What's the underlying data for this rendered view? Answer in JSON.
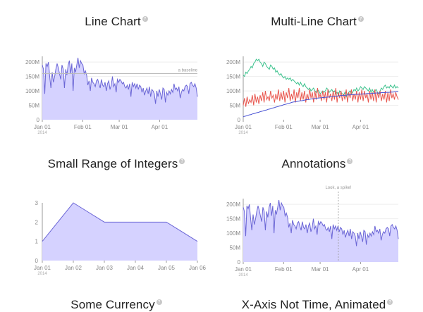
{
  "panels": {
    "line": {
      "title": "Line Chart",
      "help": "?"
    },
    "multi": {
      "title": "Multi-Line Chart",
      "help": "?"
    },
    "small": {
      "title": "Small Range of Integers",
      "help": "?"
    },
    "annotations": {
      "title": "Annotations",
      "help": "?"
    },
    "currency": {
      "title": "Some Currency",
      "help": "?"
    },
    "xaxis": {
      "title": "X-Axis Not Time, Animated",
      "help": "?"
    }
  },
  "colors": {
    "area_fill": "#d5d2ff",
    "area_line": "#6b66d6",
    "green": "#3cc28d",
    "red": "#e8574f",
    "blue": "#4a54d4"
  },
  "chart_data": [
    {
      "id": "line",
      "type": "area",
      "title": "Line Chart",
      "x_range": [
        "2014-01-01",
        "2014-04-30"
      ],
      "ylim": [
        0,
        220000000
      ],
      "y_ticks": [
        "0",
        "50M",
        "100M",
        "150M",
        "200M"
      ],
      "x_ticks": [
        "Jan 01",
        "Feb 01",
        "Mar 01",
        "Apr 01"
      ],
      "x_sub": "2014",
      "baseline": {
        "value": 160000000,
        "label": "a baseline"
      },
      "values": [
        190,
        175,
        90,
        195,
        185,
        200,
        150,
        110,
        165,
        130,
        150,
        175,
        195,
        180,
        160,
        140,
        190,
        175,
        110,
        175,
        155,
        190,
        205,
        160,
        195,
        100,
        180,
        165,
        190,
        215,
        180,
        205,
        195,
        190,
        160,
        170,
        155,
        120,
        135,
        100,
        145,
        130,
        125,
        115,
        135,
        140,
        125,
        110,
        140,
        120,
        115,
        130,
        100,
        125,
        135,
        105,
        120,
        150,
        115,
        125,
        95,
        140,
        130,
        140,
        135,
        125,
        130,
        115,
        110,
        120,
        105,
        125,
        80,
        130,
        115,
        125,
        110,
        125,
        105,
        120,
        115,
        95,
        110,
        85,
        100,
        110,
        90,
        115,
        80,
        105,
        100,
        90,
        55,
        100,
        80,
        105,
        90,
        70,
        110,
        105,
        60,
        95,
        85,
        100,
        90,
        105,
        95,
        125,
        105,
        110,
        100,
        115,
        75,
        95,
        105,
        100,
        115,
        120,
        115,
        90,
        125,
        130,
        120,
        115,
        125,
        110,
        80
      ]
    },
    {
      "id": "multi",
      "type": "line",
      "title": "Multi-Line Chart",
      "x_range": [
        "2014-01-01",
        "2014-04-30"
      ],
      "ylim": [
        0,
        220000000
      ],
      "y_ticks": [
        "0",
        "50M",
        "100M",
        "150M",
        "200M"
      ],
      "x_ticks": [
        "Jan 01",
        "Feb 01",
        "Mar 01",
        "Apr 01"
      ],
      "x_sub": "2014",
      "series": [
        {
          "color": "green",
          "values": [
            155,
            150,
            165,
            160,
            170,
            175,
            185,
            180,
            195,
            200,
            210,
            205,
            210,
            200,
            195,
            185,
            200,
            195,
            185,
            180,
            175,
            190,
            185,
            175,
            180,
            165,
            170,
            160,
            155,
            160,
            150,
            145,
            150,
            140,
            145,
            140,
            145,
            135,
            140,
            135,
            130,
            125,
            130,
            120,
            130,
            120,
            115,
            125,
            115,
            110,
            105,
            110,
            100,
            105,
            110,
            100,
            95,
            105,
            100,
            90,
            95,
            100,
            95,
            100,
            110,
            105,
            95,
            100,
            105,
            95,
            100,
            90,
            95,
            85,
            100,
            95,
            90,
            85,
            95,
            80,
            90,
            95,
            100,
            90,
            95,
            105,
            100,
            110,
            100,
            105,
            115,
            110,
            105,
            115,
            110,
            105,
            100,
            110,
            95,
            105,
            95,
            100,
            105,
            95,
            90,
            100,
            110,
            105,
            115,
            120,
            110,
            115,
            110,
            120,
            115,
            110,
            120,
            110,
            115,
            110
          ]
        },
        {
          "color": "red",
          "values": [
            50,
            75,
            45,
            80,
            55,
            70,
            60,
            85,
            50,
            90,
            60,
            80,
            55,
            85,
            65,
            95,
            60,
            100,
            70,
            80,
            65,
            100,
            75,
            85,
            60,
            90,
            70,
            105,
            65,
            95,
            70,
            100,
            60,
            95,
            75,
            110,
            65,
            90,
            70,
            105,
            60,
            95,
            75,
            110,
            65,
            95,
            70,
            100,
            60,
            90,
            70,
            105,
            75,
            95,
            60,
            100,
            70,
            110,
            75,
            90,
            65,
            100,
            70,
            95,
            60,
            105,
            75,
            90,
            65,
            100,
            70,
            110,
            60,
            95,
            75,
            100,
            65,
            90,
            70,
            105,
            60,
            95,
            75,
            105,
            65,
            90,
            70,
            100,
            60,
            95,
            70,
            105,
            65,
            100,
            75,
            90,
            60,
            100,
            70,
            95,
            65,
            105,
            60,
            95,
            75,
            100,
            65,
            90,
            70,
            100,
            60,
            95,
            65,
            105,
            75,
            90,
            70,
            95,
            80,
            70
          ]
        },
        {
          "color": "blue",
          "values": [
            10,
            12,
            13,
            14,
            16,
            17,
            18,
            20,
            21,
            22,
            24,
            25,
            26,
            28,
            29,
            30,
            32,
            33,
            34,
            36,
            37,
            38,
            40,
            41,
            42,
            44,
            45,
            46,
            48,
            49,
            50,
            52,
            53,
            54,
            56,
            57,
            58,
            60,
            61,
            62,
            62,
            63,
            64,
            65,
            66,
            66,
            67,
            68,
            69,
            70,
            70,
            71,
            72,
            72,
            73,
            74,
            74,
            75,
            75,
            76,
            76,
            77,
            77,
            78,
            78,
            79,
            79,
            80,
            80,
            81,
            81,
            82,
            82,
            83,
            83,
            84,
            84,
            84,
            85,
            85,
            86,
            86,
            86,
            87,
            87,
            87,
            88,
            88,
            88,
            89,
            89,
            89,
            90,
            90,
            90,
            91,
            91,
            91,
            91,
            92,
            92,
            92,
            93,
            93,
            93,
            93,
            94,
            94,
            94,
            94,
            95,
            95,
            95,
            96,
            96,
            96,
            97,
            97,
            98,
            98
          ]
        }
      ]
    },
    {
      "id": "small",
      "type": "area",
      "title": "Small Range of Integers",
      "x": [
        "Jan 01",
        "Jan 02",
        "Jan 03",
        "Jan 04",
        "Jan 05",
        "Jan 06"
      ],
      "values": [
        1,
        3,
        2,
        2,
        2,
        1
      ],
      "ylim": [
        0,
        3
      ],
      "y_ticks": [
        "0",
        "1",
        "2",
        "3"
      ],
      "x_sub": "2014"
    },
    {
      "id": "annotations",
      "type": "area",
      "title": "Annotations",
      "x_range": [
        "2014-01-01",
        "2014-04-30"
      ],
      "ylim": [
        0,
        220000000
      ],
      "y_ticks": [
        "0",
        "50M",
        "100M",
        "150M",
        "200M"
      ],
      "x_ticks": [
        "Jan 01",
        "Feb 01",
        "Mar 01",
        "Apr 01"
      ],
      "x_sub": "2014",
      "annotation": {
        "label": "Look, a spike!",
        "x": "2014-03-15"
      },
      "values": [
        190,
        175,
        90,
        195,
        185,
        200,
        150,
        110,
        165,
        130,
        150,
        175,
        195,
        180,
        160,
        140,
        190,
        175,
        110,
        175,
        155,
        190,
        205,
        160,
        195,
        100,
        180,
        165,
        190,
        215,
        180,
        205,
        195,
        190,
        160,
        170,
        155,
        120,
        135,
        100,
        145,
        130,
        125,
        115,
        135,
        140,
        125,
        110,
        140,
        120,
        115,
        130,
        100,
        125,
        135,
        105,
        120,
        150,
        115,
        125,
        95,
        140,
        130,
        140,
        135,
        125,
        130,
        115,
        110,
        120,
        105,
        125,
        80,
        130,
        115,
        125,
        110,
        125,
        105,
        120,
        115,
        95,
        110,
        85,
        100,
        110,
        90,
        115,
        80,
        105,
        100,
        90,
        55,
        100,
        80,
        105,
        90,
        70,
        110,
        105,
        60,
        95,
        85,
        100,
        90,
        105,
        95,
        125,
        105,
        110,
        100,
        115,
        75,
        95,
        105,
        100,
        115,
        120,
        115,
        90,
        125,
        130,
        120,
        115,
        125,
        110,
        80
      ]
    }
  ]
}
